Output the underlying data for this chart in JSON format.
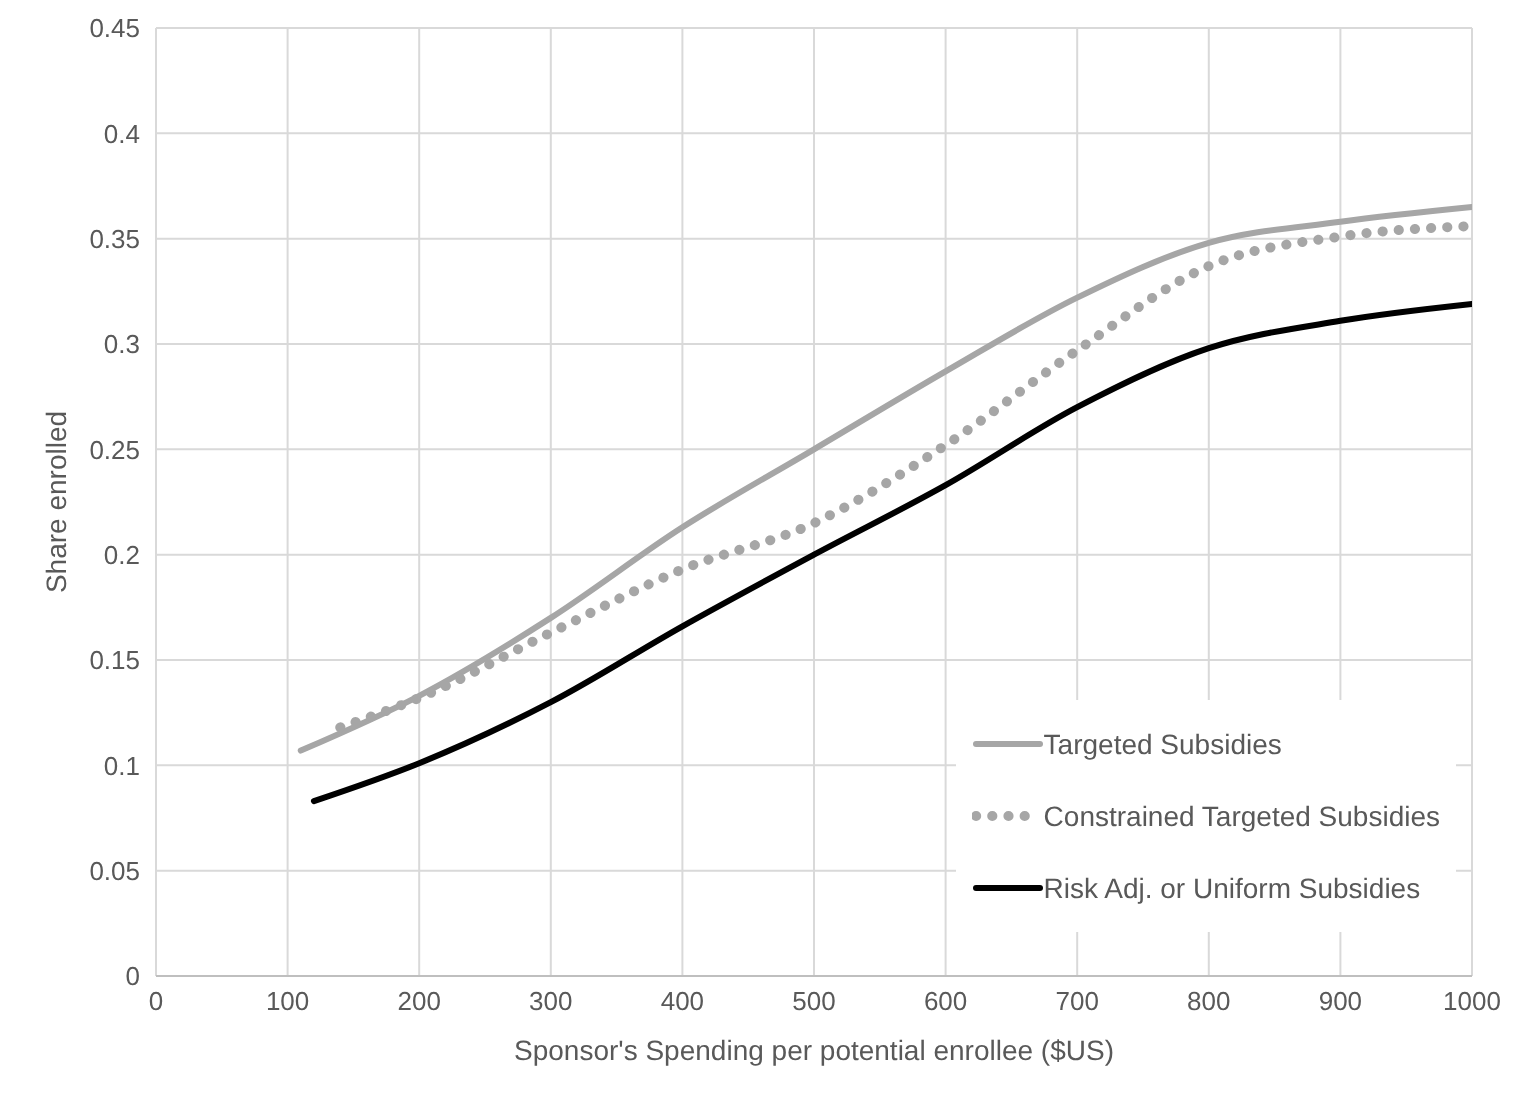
{
  "chart_data": {
    "type": "line",
    "xlabel": "Sponsor's Spending per potential enrollee ($US)",
    "ylabel": "Share enrolled",
    "xlim": [
      0,
      1000
    ],
    "xticks": [
      0,
      100,
      200,
      300,
      400,
      500,
      600,
      700,
      800,
      900,
      1000
    ],
    "ylim": [
      0,
      0.45
    ],
    "yticks": [
      0,
      0.05,
      0.1,
      0.15,
      0.2,
      0.25,
      0.3,
      0.35,
      0.4,
      0.45
    ],
    "grid": true,
    "legend": "bottom right",
    "marker": "none",
    "series": [
      {
        "name": "Targeted Subsidies",
        "color": "#a6a6a6",
        "line_style": "solid",
        "x": [
          110,
          200,
          300,
          400,
          500,
          600,
          700,
          800,
          900,
          1000
        ],
        "values": [
          0.107,
          0.133,
          0.17,
          0.213,
          0.25,
          0.287,
          0.322,
          0.348,
          0.358,
          0.365
        ]
      },
      {
        "name": "Constrained Targeted Subsidies",
        "color": "#a6a6a6",
        "line_style": "dotted",
        "x": [
          140,
          200,
          300,
          400,
          500,
          600,
          700,
          800,
          900,
          1000
        ],
        "values": [
          0.118,
          0.132,
          0.163,
          0.193,
          0.215,
          0.252,
          0.297,
          0.337,
          0.351,
          0.356
        ]
      },
      {
        "name": "Risk Adj. or Uniform Subsidies",
        "color": "#000000",
        "line_style": "solid",
        "x": [
          120,
          200,
          300,
          400,
          500,
          600,
          700,
          800,
          900,
          1000
        ],
        "values": [
          0.083,
          0.101,
          0.13,
          0.166,
          0.2,
          0.233,
          0.27,
          0.298,
          0.311,
          0.319
        ]
      }
    ]
  }
}
